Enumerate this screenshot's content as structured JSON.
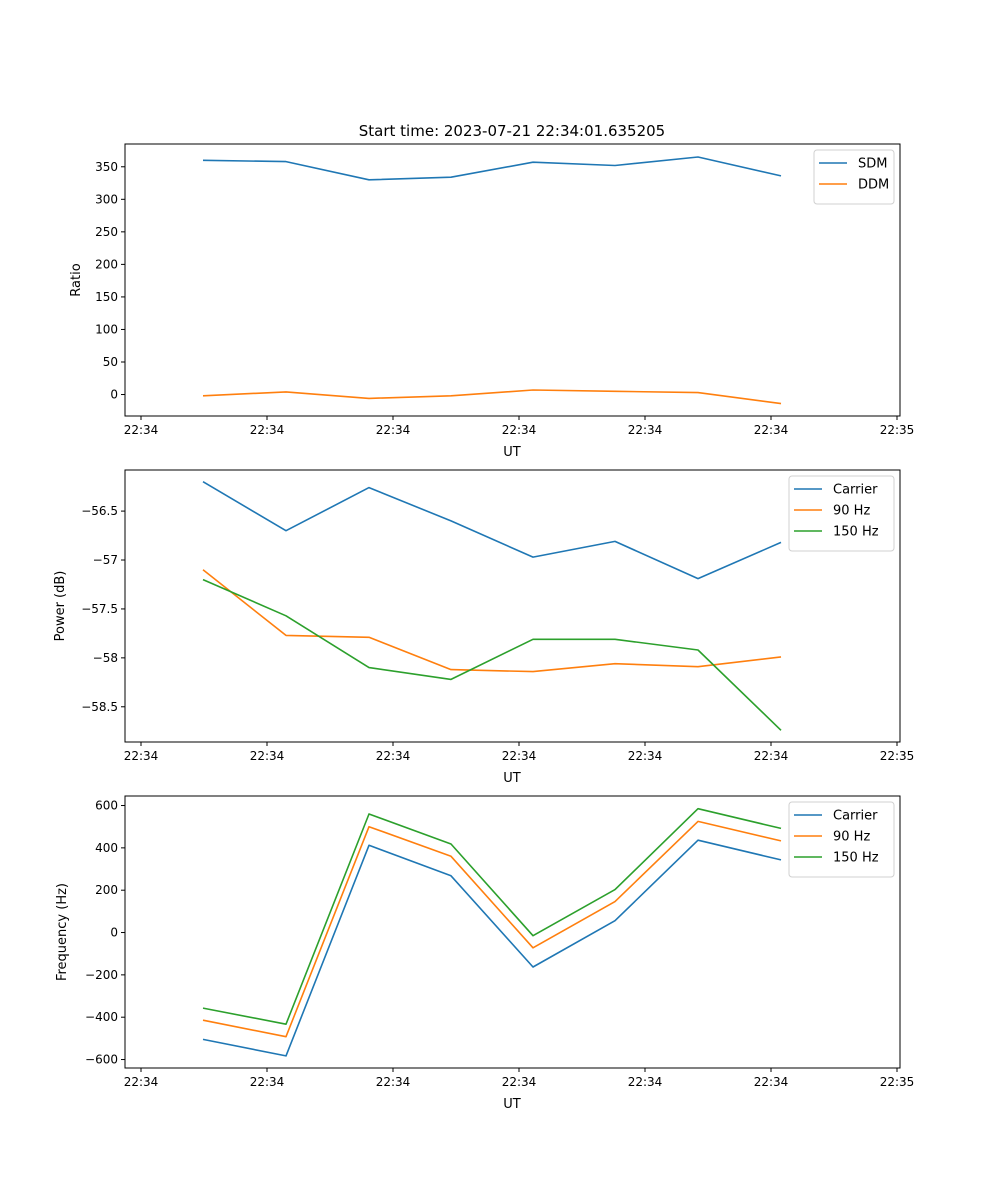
{
  "title": "Start time: 2023-07-21 22:34:01.635205",
  "colors": {
    "blue": "#1f77b4",
    "orange": "#ff7f0e",
    "green": "#2ca02c"
  },
  "chart_data": [
    {
      "type": "line",
      "title": "Start time: 2023-07-21 22:34:01.635205",
      "xlabel": "UT",
      "ylabel": "Ratio",
      "xticks": [
        "22:34",
        "22:34",
        "22:34",
        "22:34",
        "22:34",
        "22:34",
        "22:35"
      ],
      "yticks": [
        0,
        50,
        100,
        150,
        200,
        250,
        300,
        350
      ],
      "ylim": [
        -33,
        385
      ],
      "legend": "top-right",
      "grid": false,
      "series": [
        {
          "name": "SDM",
          "color": "#1f77b4",
          "values": [
            360,
            358,
            330,
            334,
            357,
            352,
            365,
            336
          ]
        },
        {
          "name": "DDM",
          "color": "#ff7f0e",
          "values": [
            -2,
            4,
            -6,
            -2,
            7,
            5,
            3,
            -14
          ]
        }
      ]
    },
    {
      "type": "line",
      "title": "",
      "xlabel": "UT",
      "ylabel": "Power (dB)",
      "xticks": [
        "22:34",
        "22:34",
        "22:34",
        "22:34",
        "22:34",
        "22:34",
        "22:35"
      ],
      "yticks": [
        -56.5,
        -57.0,
        -57.5,
        -58.0,
        -58.5
      ],
      "ylim": [
        -58.86,
        -56.08
      ],
      "legend": "top-right",
      "grid": false,
      "series": [
        {
          "name": "Carrier",
          "color": "#1f77b4",
          "values": [
            -56.2,
            -56.7,
            -56.26,
            -56.6,
            -56.97,
            -56.81,
            -57.19,
            -56.82
          ]
        },
        {
          "name": "90 Hz",
          "color": "#ff7f0e",
          "values": [
            -57.1,
            -57.77,
            -57.79,
            -58.12,
            -58.14,
            -58.06,
            -58.09,
            -57.99
          ]
        },
        {
          "name": "150 Hz",
          "color": "#2ca02c",
          "values": [
            -57.2,
            -57.57,
            -58.1,
            -58.22,
            -57.81,
            -57.81,
            -57.92,
            -58.74
          ]
        }
      ]
    },
    {
      "type": "line",
      "title": "",
      "xlabel": "UT",
      "ylabel": "Frequency (Hz)",
      "xticks": [
        "22:34",
        "22:34",
        "22:34",
        "22:34",
        "22:34",
        "22:34",
        "22:35"
      ],
      "yticks": [
        -600,
        -400,
        -200,
        0,
        200,
        400,
        600
      ],
      "ylim": [
        -640,
        645
      ],
      "legend": "top-right",
      "grid": false,
      "series": [
        {
          "name": "Carrier",
          "color": "#1f77b4",
          "values": [
            -505,
            -583,
            412,
            268,
            -163,
            56,
            436,
            343
          ]
        },
        {
          "name": "90 Hz",
          "color": "#ff7f0e",
          "values": [
            -414,
            -492,
            500,
            360,
            -72,
            146,
            525,
            433
          ]
        },
        {
          "name": "150 Hz",
          "color": "#2ca02c",
          "values": [
            -357,
            -433,
            560,
            418,
            -15,
            203,
            585,
            492
          ]
        }
      ]
    }
  ]
}
